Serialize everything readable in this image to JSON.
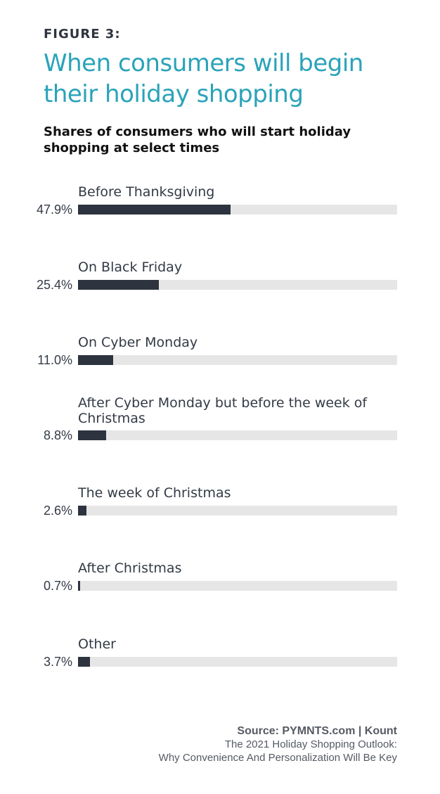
{
  "header": {
    "figure_label": "FIGURE 3:",
    "title": "When consumers will begin their holiday shopping",
    "subtitle": "Shares of consumers who will start holiday shopping at select times"
  },
  "chart_data": {
    "type": "bar",
    "orientation": "horizontal",
    "categories": [
      "Before Thanksgiving",
      "On Black Friday",
      "On Cyber Monday",
      "After Cyber Monday but before the week of Christmas",
      "The week of Christmas",
      "After Christmas",
      "Other"
    ],
    "values": [
      47.9,
      25.4,
      11.0,
      8.8,
      2.6,
      0.7,
      3.7
    ],
    "value_labels": [
      "47.9%",
      "25.4%",
      "11.0%",
      "8.8%",
      "2.6%",
      "0.7%",
      "3.7%"
    ],
    "xlim": [
      0,
      100
    ],
    "unit": "%",
    "grid": false,
    "legend": "none",
    "colors": {
      "bar": "#2d333f",
      "track": "#e6e6e6",
      "title": "#2aa3b9"
    }
  },
  "footer": {
    "source": "Source: PYMNTS.com  |  Kount",
    "publication_line1": "The 2021 Holiday Shopping Outlook:",
    "publication_line2": "Why Convenience And Personalization Will Be Key"
  }
}
